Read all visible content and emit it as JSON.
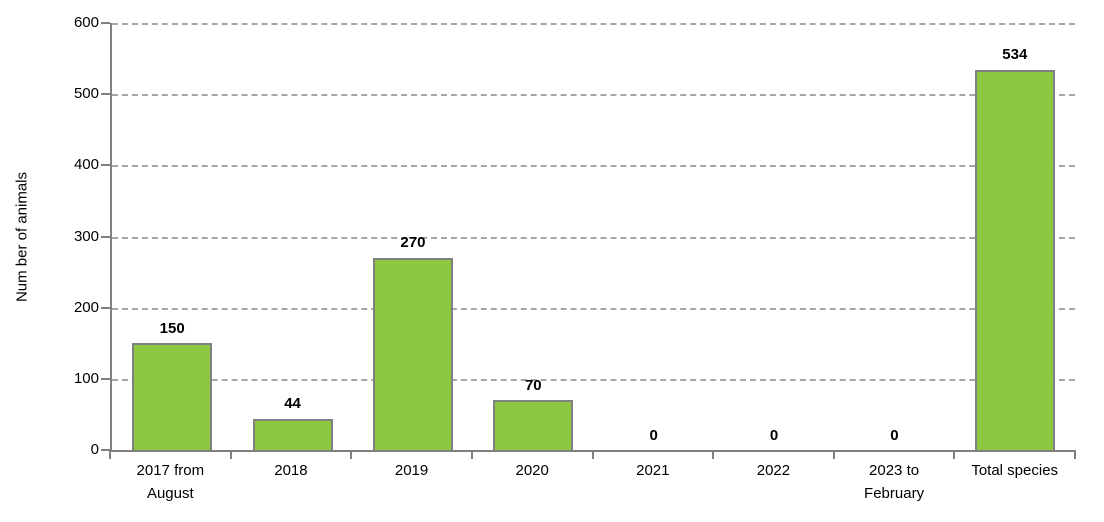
{
  "chart_data": {
    "type": "bar",
    "title": "",
    "xlabel": "",
    "ylabel": "Num ber of animals",
    "categories": [
      "2017 from\nAugust",
      "2018",
      "2019",
      "2020",
      "2021",
      "2022",
      "2023 to\nFebruary",
      "Total species"
    ],
    "values": [
      150,
      44,
      270,
      70,
      0,
      0,
      0,
      534
    ],
    "data_labels": [
      "150",
      "44",
      "270",
      "70",
      "0",
      "0",
      "0",
      "534"
    ],
    "y_ticks": [
      "0",
      "100",
      "200",
      "300",
      "400",
      "500",
      "600"
    ],
    "y_tick_values": [
      0,
      100,
      200,
      300,
      400,
      500,
      600
    ],
    "ylim": [
      0,
      600
    ],
    "grid": "horizontal-dashed",
    "legend": "none",
    "colors": {
      "bar_fill": "#8dc63f",
      "bar_border": "#808080",
      "axis": "#808080",
      "gridline": "#a6a6a6",
      "text": "#000000",
      "background": "#ffffff"
    }
  }
}
